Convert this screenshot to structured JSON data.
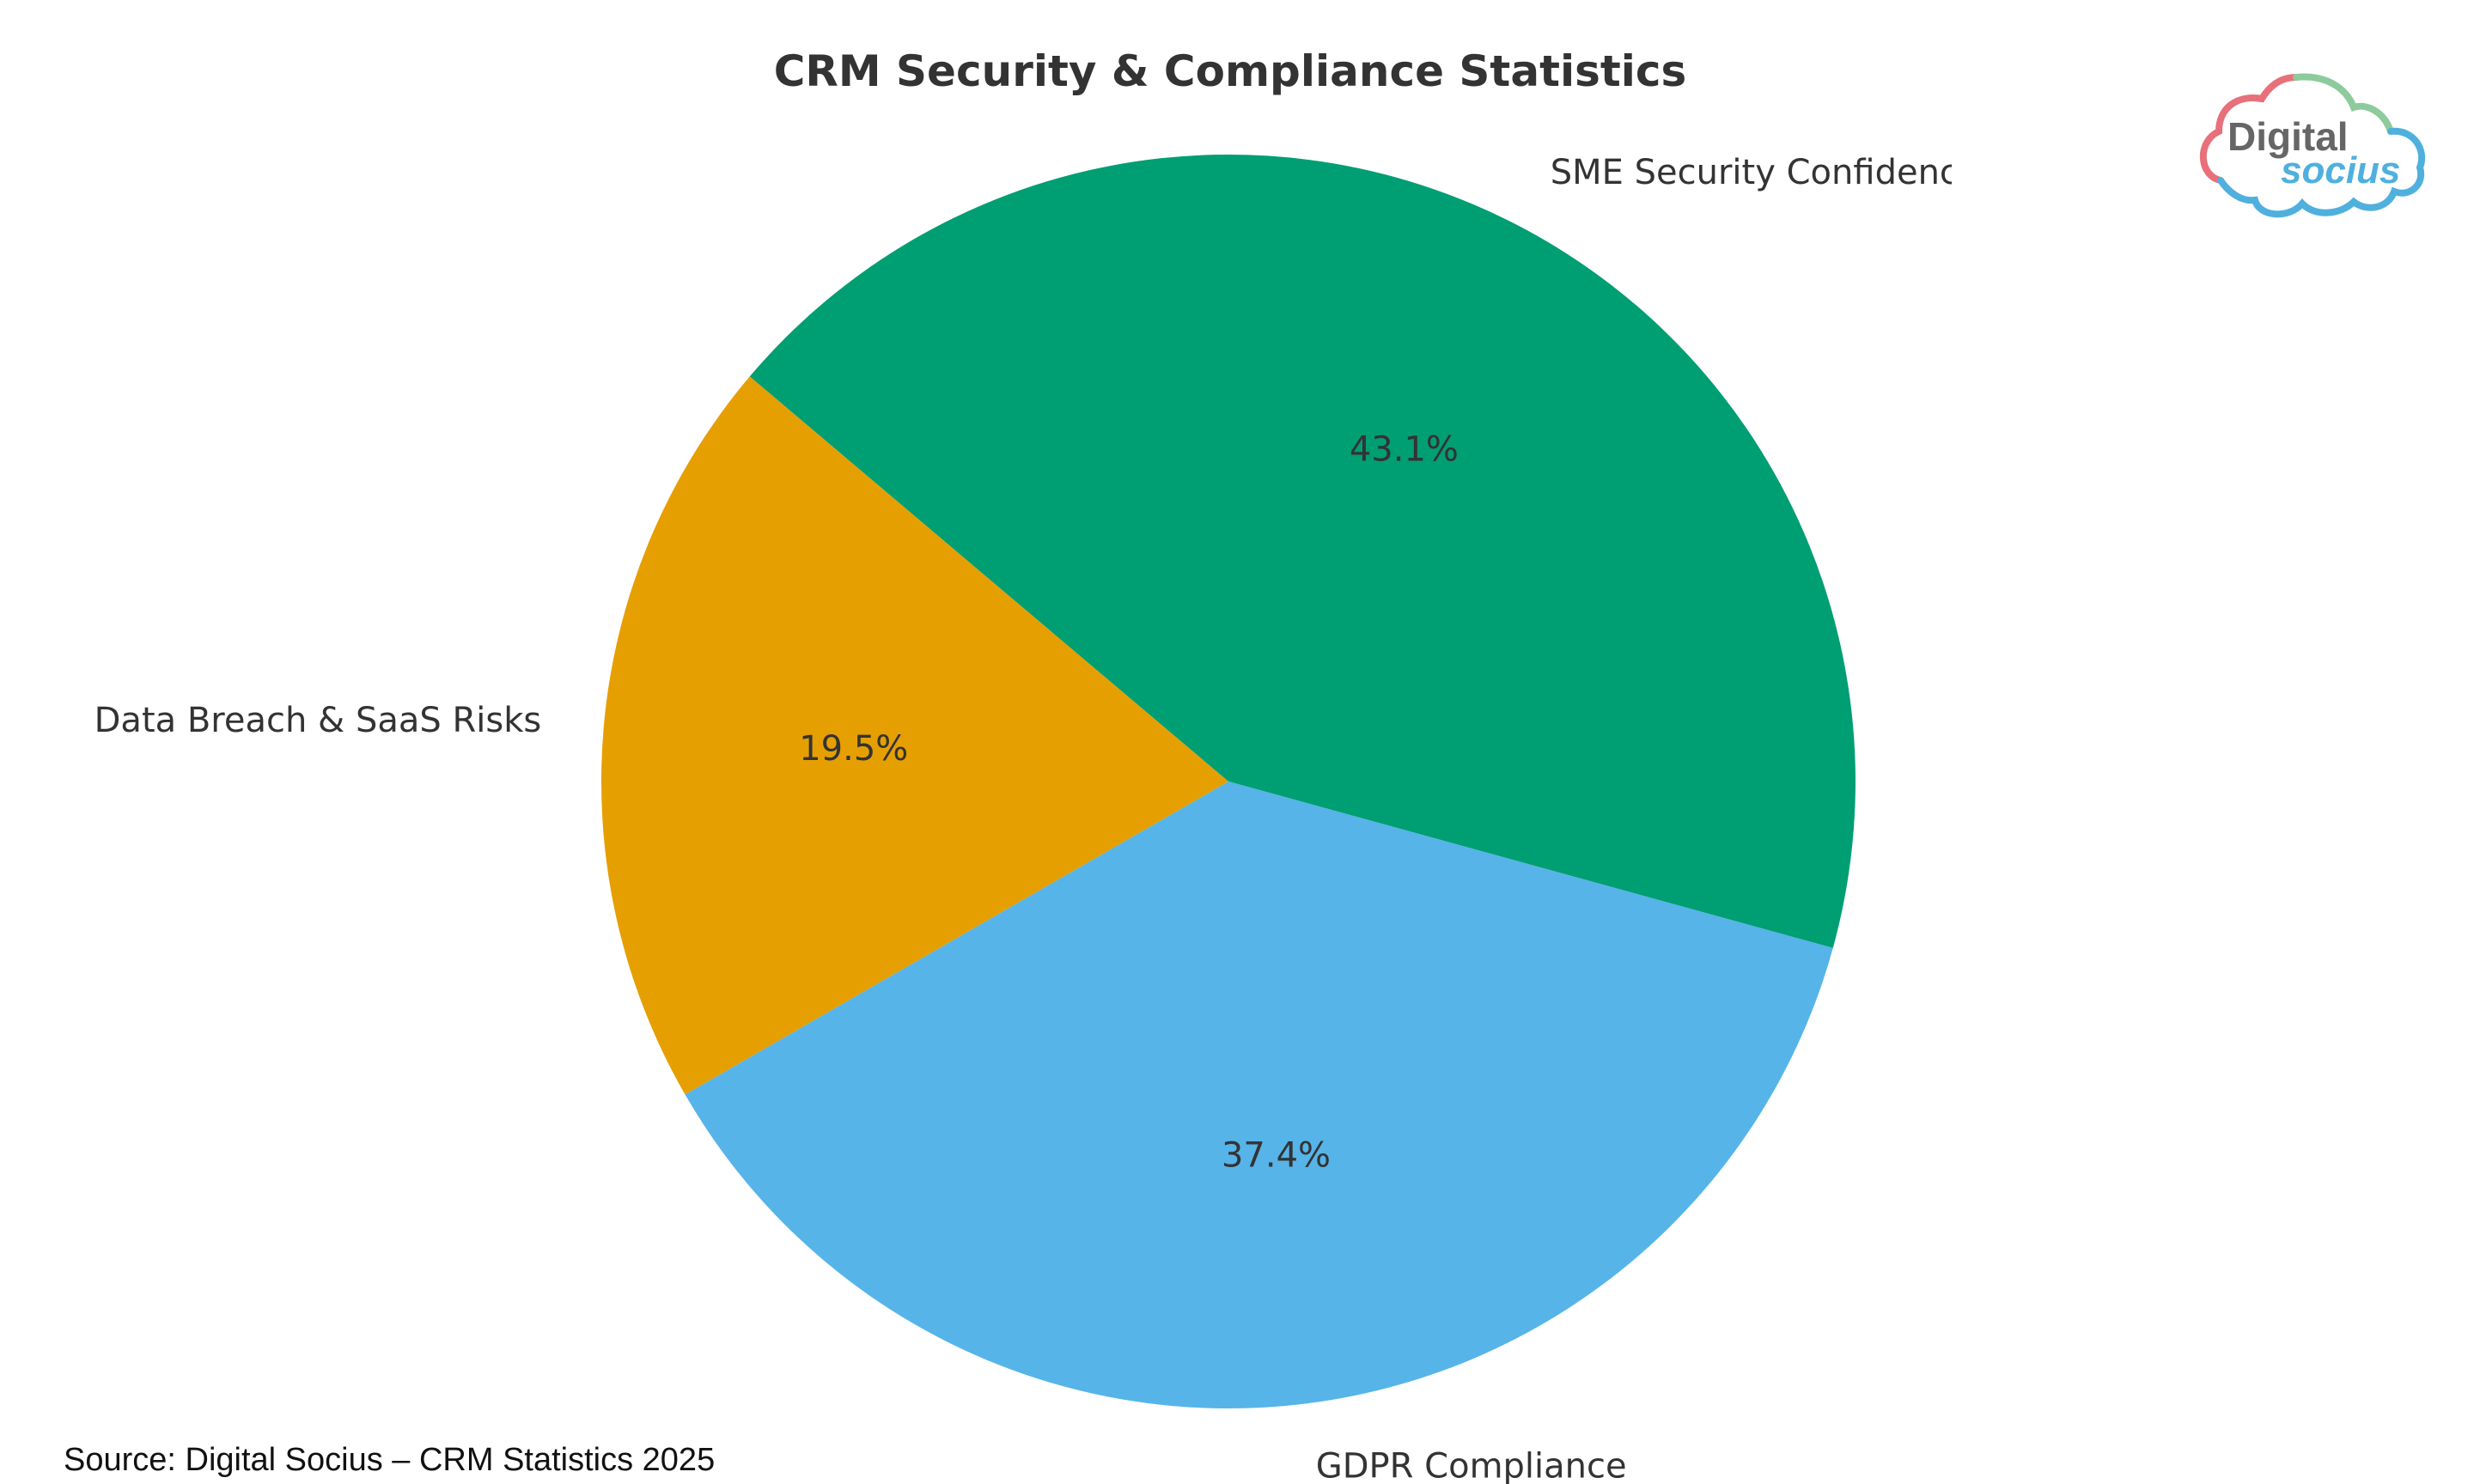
{
  "chart_data": {
    "type": "pie",
    "title": "CRM Security & Compliance Statistics",
    "start_angle_deg": -15.4,
    "direction": "counterclockwise",
    "slices": [
      {
        "label": "SME Security Confidenc",
        "value": 43.1,
        "pct_label": "43.1%",
        "color": "#009E73"
      },
      {
        "label": "Data Breach & SaaS Risks",
        "value": 19.5,
        "pct_label": "19.5%",
        "color": "#E69F00"
      },
      {
        "label": "GDPR Compliance",
        "value": 37.4,
        "pct_label": "37.4%",
        "color": "#56B4E9"
      }
    ],
    "source": "Source: Digital Socius – CRM Statistics 2025"
  },
  "logo": {
    "line1": "Digital",
    "line2": "socius",
    "colors": {
      "red": "#E8707A",
      "green": "#8DCB9C",
      "blue": "#4FB0DE",
      "gray": "#666666"
    }
  }
}
